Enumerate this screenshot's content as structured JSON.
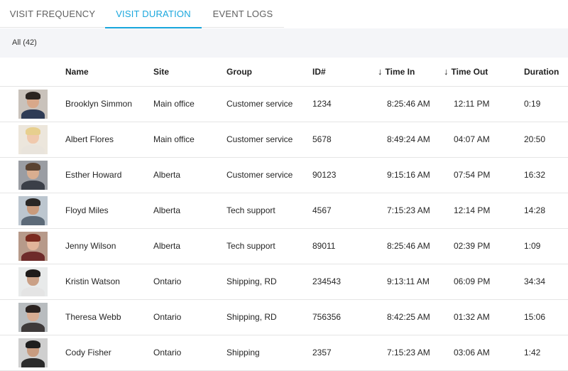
{
  "tabs": [
    {
      "label": "VISIT FREQUENCY",
      "active": false
    },
    {
      "label": "VISIT DURATION",
      "active": true
    },
    {
      "label": "EVENT LOGS",
      "active": false
    }
  ],
  "accent_color": "#1aa7dd",
  "filter": {
    "label": "All (42)"
  },
  "table": {
    "headers": {
      "name": "Name",
      "site": "Site",
      "group": "Group",
      "id": "ID#",
      "time_in": "Time In",
      "time_out": "Time Out",
      "duration": "Duration"
    },
    "sort_icon": "arrow-down-icon",
    "rows": [
      {
        "name": "Brooklyn Simmon",
        "site": "Main office",
        "group": "Customer service",
        "id": "1234",
        "time_in": "8:25:46 AM",
        "time_out": "12:11 PM",
        "duration": "0:19"
      },
      {
        "name": "Albert Flores",
        "site": "Main office",
        "group": "Customer service",
        "id": "5678",
        "time_in": "8:49:24 AM",
        "time_out": "04:07 AM",
        "duration": "20:50"
      },
      {
        "name": "Esther Howard",
        "site": "Alberta",
        "group": "Customer service",
        "id": "90123",
        "time_in": "9:15:16 AM",
        "time_out": "07:54 PM",
        "duration": "16:32"
      },
      {
        "name": "Floyd Miles",
        "site": "Alberta",
        "group": "Tech support",
        "id": "4567",
        "time_in": "7:15:23 AM",
        "time_out": "12:14 PM",
        "duration": "14:28"
      },
      {
        "name": "Jenny Wilson",
        "site": "Alberta",
        "group": "Tech support",
        "id": "89011",
        "time_in": "8:25:46 AM",
        "time_out": "02:39 PM",
        "duration": "1:09"
      },
      {
        "name": "Kristin Watson",
        "site": "Ontario",
        "group": "Shipping, RD",
        "id": "234543",
        "time_in": "9:13:11 AM",
        "time_out": "06:09 PM",
        "duration": "34:34"
      },
      {
        "name": "Theresa Webb",
        "site": "Ontario",
        "group": "Shipping, RD",
        "id": "756356",
        "time_in": "8:42:25 AM",
        "time_out": "01:32 AM",
        "duration": "15:06"
      },
      {
        "name": "Cody Fisher",
        "site": "Ontario",
        "group": "Shipping",
        "id": "2357",
        "time_in": "7:15:23 AM",
        "time_out": "03:06 AM",
        "duration": "1:42"
      }
    ]
  }
}
